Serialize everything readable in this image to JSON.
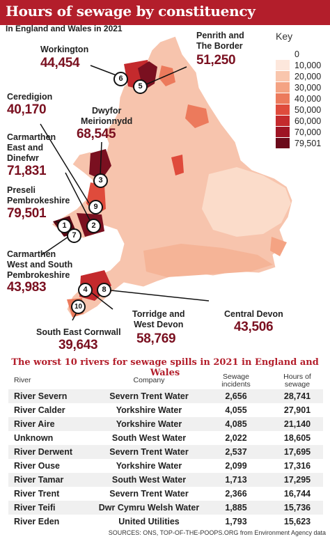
{
  "header": {
    "title": "Hours of sewage by constituency",
    "subtitle": "In England and Wales in 2021"
  },
  "key": {
    "title": "Key",
    "items": [
      {
        "label": "0",
        "color": "#ffffff"
      },
      {
        "label": "10,000",
        "color": "#fde7dc"
      },
      {
        "label": "20,000",
        "color": "#f9c6ad"
      },
      {
        "label": "30,000",
        "color": "#f4a383"
      },
      {
        "label": "40,000",
        "color": "#ec7a5c"
      },
      {
        "label": "50,000",
        "color": "#df4b3c"
      },
      {
        "label": "60,000",
        "color": "#c42a2d"
      },
      {
        "label": "70,000",
        "color": "#9e1424"
      },
      {
        "label": "79,501",
        "color": "#6b0a1a"
      }
    ]
  },
  "constituencies": {
    "workington": {
      "name": "Workington",
      "value": "44,454",
      "marker": "6"
    },
    "penrith": {
      "name": "Penrith and\nThe Border",
      "value": "51,250",
      "marker": "5"
    },
    "ceredigion": {
      "name": "Ceredigion",
      "value": "40,170",
      "marker": "9"
    },
    "dwyfor": {
      "name": "Dwyfor\nMeirionnydd",
      "value": "68,545",
      "marker": "3"
    },
    "carmarthen_east": {
      "name": "Carmarthen\nEast and\nDinefwr",
      "value": "71,831",
      "marker": "2"
    },
    "preseli": {
      "name": "Preseli\nPembrokeshire",
      "value": "79,501",
      "marker": "1"
    },
    "carmarthen_west": {
      "name": "Carmarthen\nWest and South\nPembrokeshire",
      "value": "43,983",
      "marker": "7"
    },
    "torridge": {
      "name": "Torridge and\nWest Devon",
      "value": "58,769",
      "marker": "4"
    },
    "central_devon": {
      "name": "Central Devon",
      "value": "43,506",
      "marker": "8"
    },
    "se_cornwall": {
      "name": "South East Cornwall",
      "value": "39,643",
      "marker": "10"
    }
  },
  "table": {
    "title": "The worst 10 rivers for sewage spills in 2021 in England and Wales",
    "headers": {
      "river": "River",
      "company": "Company",
      "incidents": "Sewage\nincidents",
      "hours": "Hours of\nsewage"
    },
    "rows": [
      {
        "river": "River Severn",
        "company": "Severn Trent Water",
        "incidents": "2,656",
        "hours": "28,741"
      },
      {
        "river": "River Calder",
        "company": "Yorkshire Water",
        "incidents": "4,055",
        "hours": "27,901"
      },
      {
        "river": "River Aire",
        "company": "Yorkshire Water",
        "incidents": "4,085",
        "hours": "21,140"
      },
      {
        "river": "Unknown",
        "company": "South West Water",
        "incidents": "2,022",
        "hours": "18,605"
      },
      {
        "river": "River Derwent",
        "company": "Severn Trent Water",
        "incidents": "2,537",
        "hours": "17,695"
      },
      {
        "river": "River Ouse",
        "company": "Yorkshire Water",
        "incidents": "2,099",
        "hours": "17,316"
      },
      {
        "river": "River Tamar",
        "company": "South West Water",
        "incidents": "1,713",
        "hours": "17,295"
      },
      {
        "river": "River Trent",
        "company": "Severn Trent Water",
        "incidents": "2,366",
        "hours": "16,744"
      },
      {
        "river": "River Teifi",
        "company": "Dwr Cymru Welsh Water",
        "incidents": "1,885",
        "hours": "15,736"
      },
      {
        "river": "River Eden",
        "company": "United Utilities",
        "incidents": "1,793",
        "hours": "15,623"
      }
    ]
  },
  "sources": "SOURCES: ONS, TOP-OF-THE-POOPS.ORG from Environment Agency data"
}
